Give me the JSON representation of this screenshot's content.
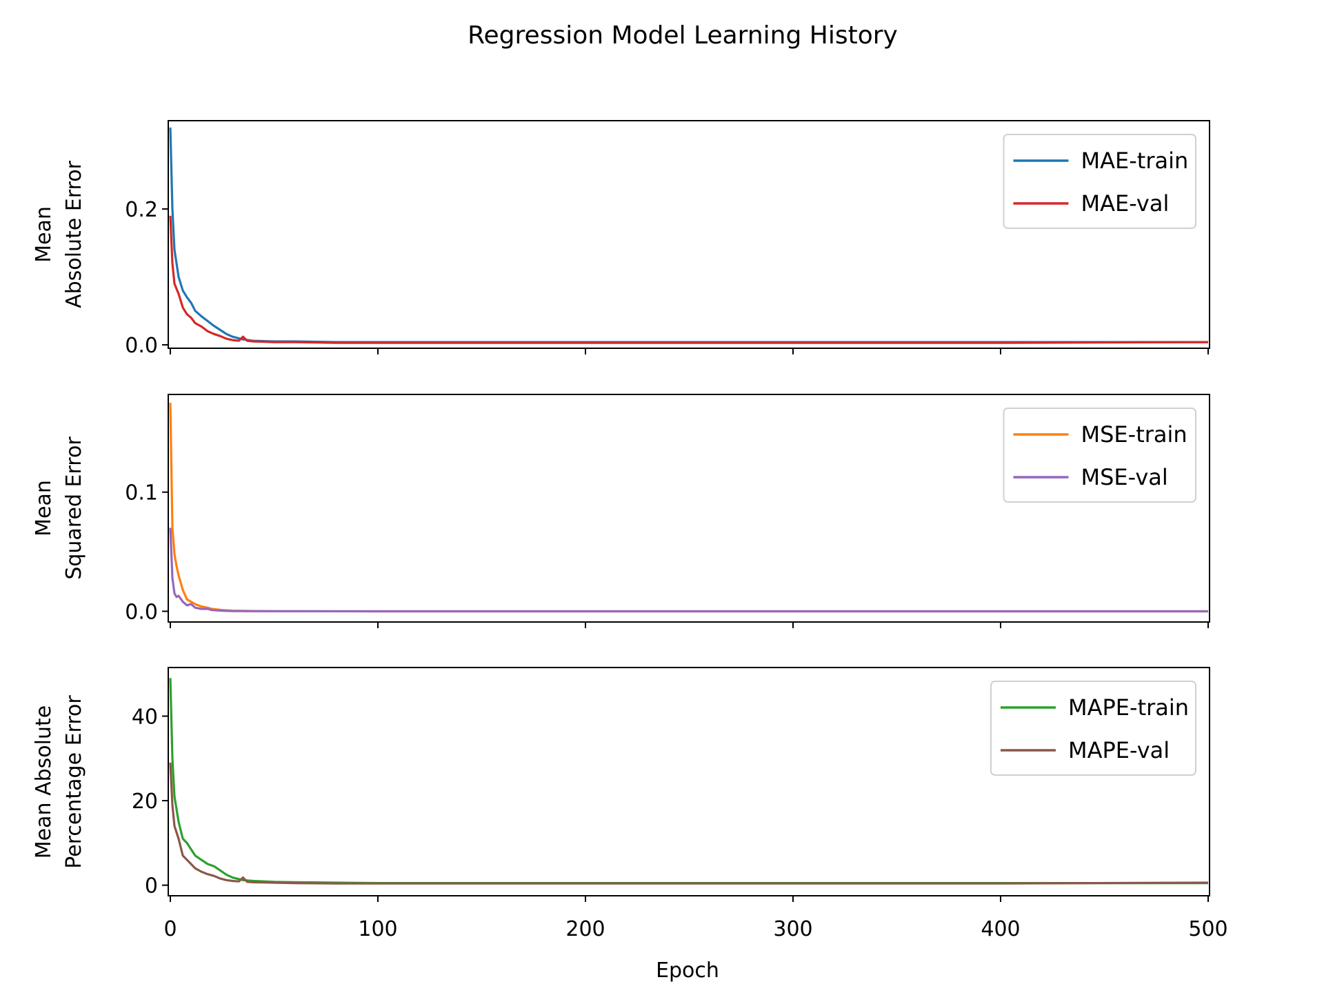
{
  "figure": {
    "title": "Regression Model Learning History",
    "xlabel": "Epoch",
    "x_ticks": [
      "0",
      "100",
      "200",
      "300",
      "400",
      "500"
    ]
  },
  "chart_data": [
    {
      "type": "line",
      "ylabel": [
        "Mean",
        "Absolute Error"
      ],
      "xlim": [
        0,
        500
      ],
      "ylim": [
        -0.005,
        0.33
      ],
      "yticks": [
        0.0,
        0.2
      ],
      "ytick_labels": [
        "0.0",
        "0.2"
      ],
      "legend": "top-right",
      "grid": false,
      "series": [
        {
          "name": "MAE-train",
          "color": "#1f77b4",
          "x": [
            0,
            1,
            2,
            4,
            6,
            8,
            10,
            12,
            15,
            18,
            21,
            24,
            27,
            30,
            35,
            40,
            50,
            60,
            80,
            100,
            150,
            200,
            300,
            400,
            500
          ],
          "y": [
            0.32,
            0.2,
            0.14,
            0.1,
            0.08,
            0.07,
            0.062,
            0.05,
            0.042,
            0.035,
            0.028,
            0.022,
            0.016,
            0.012,
            0.008,
            0.006,
            0.005,
            0.005,
            0.004,
            0.004,
            0.004,
            0.004,
            0.004,
            0.004,
            0.004
          ]
        },
        {
          "name": "MAE-val",
          "color": "#d62728",
          "x": [
            0,
            1,
            2,
            4,
            6,
            8,
            10,
            12,
            15,
            18,
            21,
            24,
            27,
            30,
            33,
            35,
            37,
            40,
            50,
            60,
            80,
            100,
            150,
            200,
            300,
            400,
            500
          ],
          "y": [
            0.19,
            0.12,
            0.09,
            0.075,
            0.055,
            0.045,
            0.04,
            0.032,
            0.027,
            0.02,
            0.016,
            0.013,
            0.009,
            0.007,
            0.006,
            0.012,
            0.006,
            0.005,
            0.004,
            0.004,
            0.003,
            0.003,
            0.003,
            0.003,
            0.003,
            0.003,
            0.004
          ]
        }
      ]
    },
    {
      "type": "line",
      "ylabel": [
        "Mean",
        "Squared Error"
      ],
      "xlim": [
        0,
        500
      ],
      "ylim": [
        -0.009,
        0.182
      ],
      "yticks": [
        0.0,
        0.1
      ],
      "ytick_labels": [
        "0.0",
        "0.1"
      ],
      "legend": "top-right",
      "grid": false,
      "series": [
        {
          "name": "MSE-train",
          "color": "#ff7f0e",
          "x": [
            0,
            1,
            2,
            3,
            4,
            6,
            8,
            10,
            12,
            15,
            18,
            20,
            25,
            30,
            40,
            50,
            100,
            200,
            300,
            400,
            500
          ],
          "y": [
            0.175,
            0.07,
            0.048,
            0.038,
            0.03,
            0.018,
            0.01,
            0.008,
            0.006,
            0.004,
            0.003,
            0.002,
            0.001,
            0.0005,
            0.0002,
            0.0001,
            0.0,
            0.0,
            0.0,
            0.0,
            0.0
          ]
        },
        {
          "name": "MSE-val",
          "color": "#9467bd",
          "x": [
            0,
            1,
            2,
            3,
            4,
            6,
            8,
            10,
            12,
            15,
            18,
            20,
            25,
            30,
            40,
            100,
            200,
            300,
            400,
            500
          ],
          "y": [
            0.07,
            0.028,
            0.015,
            0.012,
            0.013,
            0.008,
            0.005,
            0.006,
            0.003,
            0.002,
            0.002,
            0.001,
            0.0005,
            0.0002,
            0.0001,
            0.0,
            0.0,
            0.0,
            0.0,
            0.0
          ]
        }
      ]
    },
    {
      "type": "line",
      "ylabel": [
        "Mean Absolute",
        "Percentage Error"
      ],
      "xlim": [
        0,
        500
      ],
      "ylim": [
        -2.5,
        51.5
      ],
      "yticks": [
        0,
        20,
        40
      ],
      "ytick_labels": [
        "0",
        "20",
        "40"
      ],
      "legend": "top-right",
      "grid": false,
      "series": [
        {
          "name": "MAPE-train",
          "color": "#2ca02c",
          "x": [
            0,
            1,
            2,
            4,
            6,
            8,
            10,
            12,
            15,
            18,
            21,
            24,
            27,
            30,
            35,
            40,
            50,
            60,
            80,
            100,
            150,
            200,
            300,
            400,
            500
          ],
          "y": [
            49,
            30,
            21,
            15,
            11,
            10,
            8.5,
            7,
            6,
            5,
            4.5,
            3.5,
            2.5,
            1.8,
            1.2,
            1.0,
            0.8,
            0.7,
            0.6,
            0.5,
            0.5,
            0.5,
            0.5,
            0.5,
            0.5
          ]
        },
        {
          "name": "MAPE-val",
          "color": "#8c564b",
          "x": [
            0,
            1,
            2,
            4,
            6,
            8,
            10,
            12,
            15,
            18,
            21,
            24,
            27,
            30,
            33,
            35,
            37,
            40,
            50,
            60,
            80,
            100,
            150,
            200,
            300,
            400,
            500
          ],
          "y": [
            29,
            19,
            14,
            11,
            7,
            6,
            5,
            4,
            3.2,
            2.6,
            2.2,
            1.6,
            1.2,
            1.0,
            0.9,
            1.8,
            0.8,
            0.7,
            0.6,
            0.5,
            0.4,
            0.4,
            0.4,
            0.4,
            0.4,
            0.4,
            0.6
          ]
        }
      ]
    }
  ]
}
